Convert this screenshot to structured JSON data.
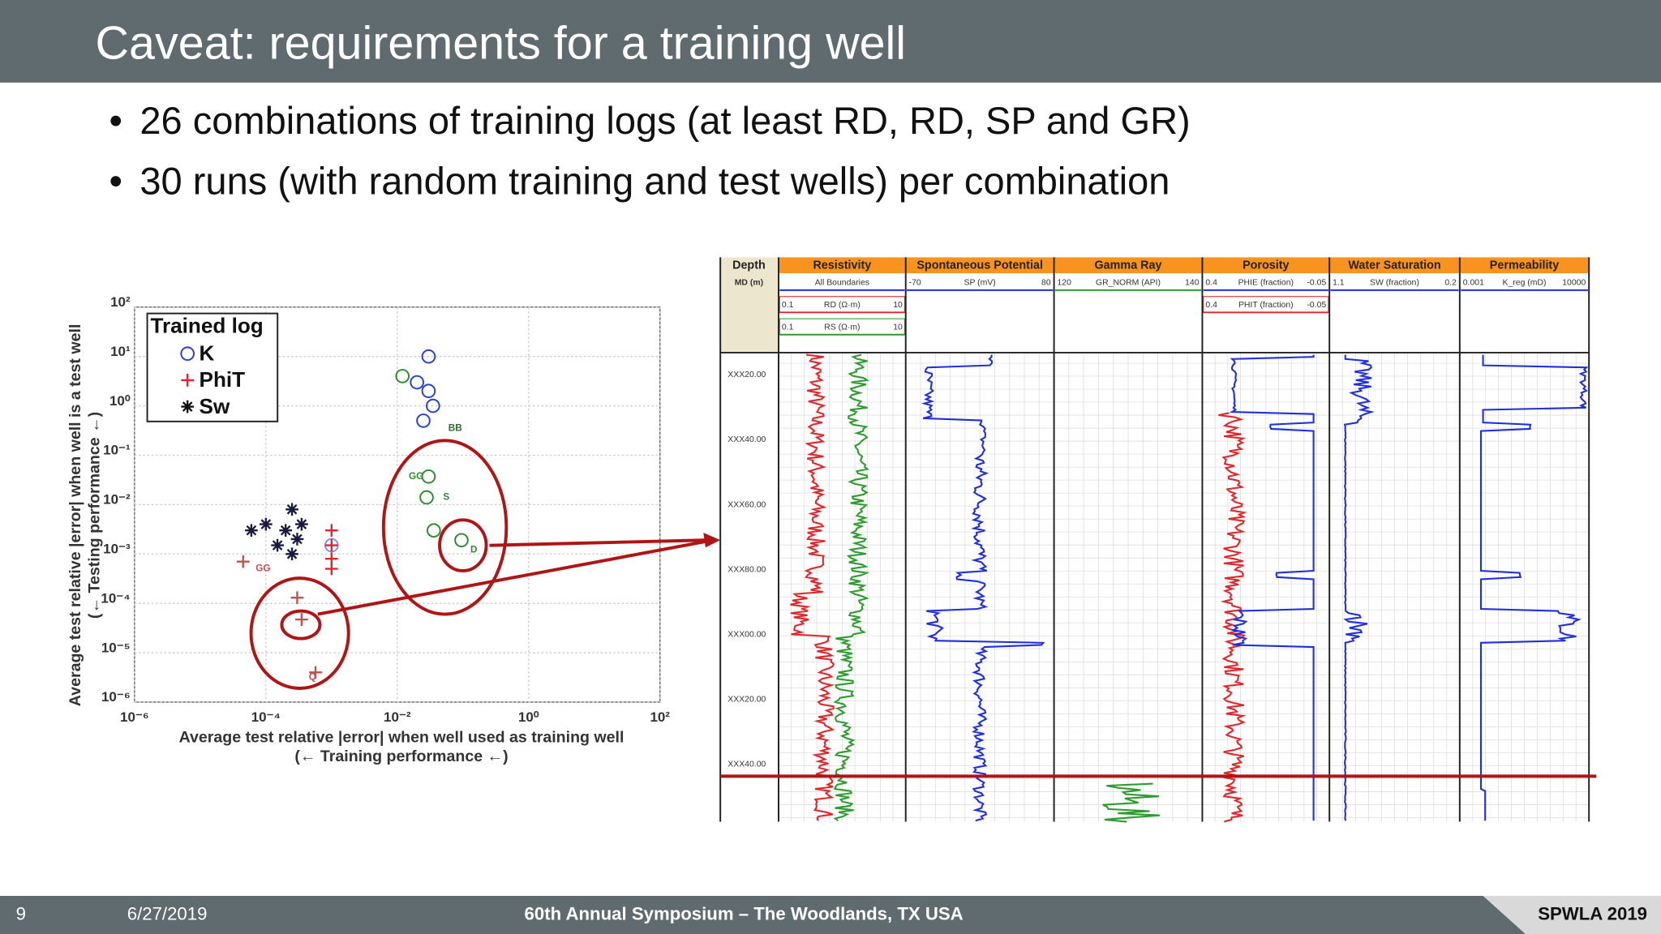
{
  "header": {
    "title": "Caveat: requirements for a training well"
  },
  "bullets": [
    "26 combinations of training logs (at least RD, RD, SP and GR)",
    "30 runs (with random training and test wells) per combination"
  ],
  "chart_data": {
    "type": "scatter",
    "xlabel": "Average test relative |error| when well used as training well",
    "xlabel_note": "(← Training performance ←)",
    "ylabel": "Average test relative |error| when well is a test well",
    "ylabel_note": "(← Testing performance ←)",
    "log_x": true,
    "log_y": true,
    "grid": true,
    "xlim": [
      1e-06,
      100
    ],
    "ylim": [
      1e-06,
      100
    ],
    "xticks": [
      {
        "value": 1e-06,
        "label": "10⁻⁶"
      },
      {
        "value": 0.0001,
        "label": "10⁻⁴"
      },
      {
        "value": 0.01,
        "label": "10⁻²"
      },
      {
        "value": 1,
        "label": "10⁰"
      },
      {
        "value": 100,
        "label": "10²"
      }
    ],
    "yticks": [
      {
        "value": 1e-06,
        "label": "10⁻⁶"
      },
      {
        "value": 1e-05,
        "label": "10⁻⁵"
      },
      {
        "value": 0.0001,
        "label": "10⁻⁴"
      },
      {
        "value": 0.001,
        "label": "10⁻³"
      },
      {
        "value": 0.01,
        "label": "10⁻²"
      },
      {
        "value": 0.1,
        "label": "10⁻¹"
      },
      {
        "value": 1,
        "label": "10⁰"
      },
      {
        "value": 10,
        "label": "10¹"
      },
      {
        "value": 100,
        "label": "10²"
      }
    ],
    "legend_title": "Trained log",
    "legend": "upper left",
    "series": [
      {
        "name": "K",
        "marker": "circle",
        "color": "#2a3fd0",
        "x": [
          0.02,
          0.03,
          0.035,
          0.025,
          0.03,
          0.012,
          0.03,
          0.028,
          0.036,
          0.095,
          0.001
        ],
        "y": [
          3,
          10,
          1,
          0.5,
          2,
          4,
          0.037,
          0.014,
          0.003,
          0.0019,
          0.0015
        ],
        "colors": [
          "#2a3fd0",
          "#2a3fd0",
          "#2a3fd0",
          "#2a3fd0",
          "#2a3fd0",
          "#2e8b2e",
          "#2e8b2e",
          "#2e8b2e",
          "#2e8b2e",
          "#2e8b2e",
          "#8c8ce0"
        ]
      },
      {
        "name": "PhiT",
        "marker": "plus",
        "color": "#e0262b",
        "x": [
          0.001,
          0.001,
          0.001,
          0.001,
          0.00035,
          0.00057,
          4.5e-05,
          0.0003
        ],
        "y": [
          0.003,
          0.0015,
          0.0008,
          0.0005,
          4.7e-05,
          4e-06,
          0.0007,
          0.00013
        ],
        "colors": [
          "#e0262b",
          "#e0262b",
          "#e0262b",
          "#e0262b",
          "#c0504d",
          "#c0504d",
          "#c0504d",
          "#c0504d"
        ]
      },
      {
        "name": "Sw",
        "marker": "asterisk",
        "color": "#111111",
        "x": [
          6e-05,
          0.0001,
          0.0002,
          0.0003,
          0.00015,
          0.00025,
          0.00035,
          0.00025
        ],
        "y": [
          0.003,
          0.004,
          0.003,
          0.002,
          0.0015,
          0.001,
          0.004,
          0.008
        ],
        "colors": [
          "#1a1a40",
          "#1a1a40",
          "#1a1a40",
          "#1a1a40",
          "#1a1a40",
          "#1a1a40",
          "#1a1a40",
          "#1a1a40"
        ]
      }
    ],
    "annotations": [
      {
        "text": "BB",
        "x": 0.06,
        "y": 0.35,
        "color": "#2e6b2e"
      },
      {
        "text": "GG",
        "x": 0.015,
        "y": 0.037,
        "color": "#2e8b2e"
      },
      {
        "text": "S",
        "x": 0.05,
        "y": 0.014,
        "color": "#2e8b2e"
      },
      {
        "text": "D",
        "x": 0.13,
        "y": 0.0012,
        "color": "#2e8b2e"
      },
      {
        "text": "Q",
        "x": 0.00045,
        "y": 3.2e-06,
        "color": "#c0504d"
      },
      {
        "text": "GG",
        "x": 7e-05,
        "y": 0.0005,
        "color": "#c0504d"
      }
    ]
  },
  "well_log": {
    "depth_header": [
      "Depth",
      "MD (m)"
    ],
    "tracks": [
      {
        "title": "Resistivity",
        "curves": [
          {
            "min": "",
            "name": "All Boundaries",
            "max": ""
          },
          {
            "min": "0.1",
            "name": "RD (Ω·m)",
            "max": "10"
          },
          {
            "min": "0.1",
            "name": "RS (Ω·m)",
            "max": "10"
          }
        ]
      },
      {
        "title": "Spontaneous Potential",
        "curves": [
          {
            "min": "-70",
            "name": "SP (mV)",
            "max": "80"
          }
        ]
      },
      {
        "title": "Gamma Ray",
        "curves": [
          {
            "min": "120",
            "name": "GR_NORM (API)",
            "max": "140"
          }
        ]
      },
      {
        "title": "Porosity",
        "curves": [
          {
            "min": "0.4",
            "name": "PHIE (fraction)",
            "max": "-0.05"
          },
          {
            "min": "0.4",
            "name": "PHIT (fraction)",
            "max": "-0.05"
          }
        ]
      },
      {
        "title": "Water Saturation",
        "curves": [
          {
            "min": "1.1",
            "name": "SW (fraction)",
            "max": "0.2"
          }
        ]
      },
      {
        "title": "Permeability",
        "curves": [
          {
            "min": "0.001",
            "name": "K_reg (mD)",
            "max": "10000"
          }
        ]
      }
    ],
    "depths": [
      "XXX20.00",
      "XXX40.00",
      "XXX60.00",
      "XXX80.00",
      "XXX00.00",
      "XXX20.00",
      "XXX40.00"
    ]
  },
  "footer": {
    "page": "9",
    "date": "6/27/2019",
    "event": "60th Annual Symposium – The Woodlands, TX USA",
    "brand": "SPWLA 2019"
  }
}
